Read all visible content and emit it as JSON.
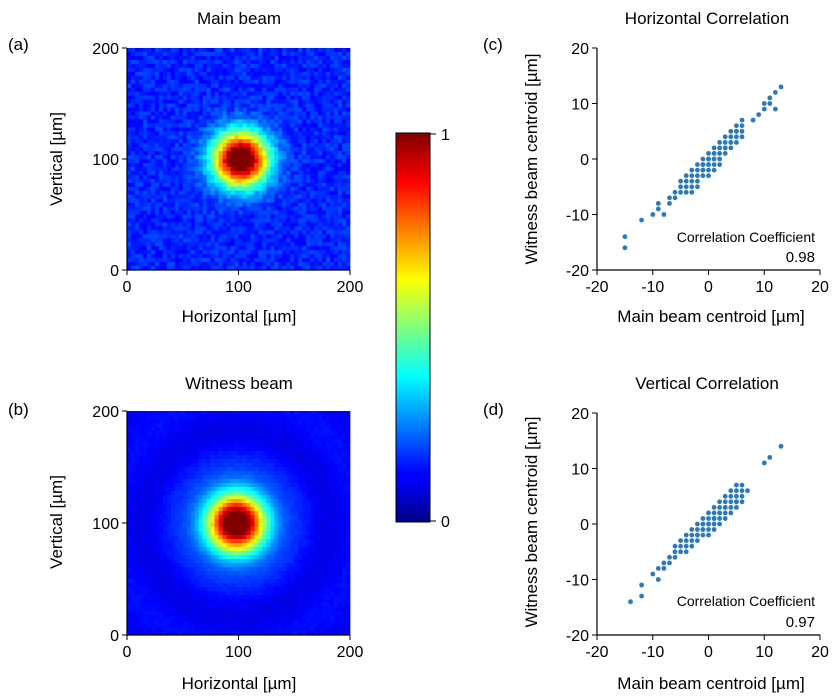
{
  "figure": {
    "colorbar": {
      "min_label": "0",
      "max_label": "1"
    }
  },
  "chart_data": [
    {
      "panel": "(a)",
      "type": "heatmap",
      "title": "Main beam",
      "xlabel": "Horizontal [µm]",
      "ylabel": "Vertical [µm]",
      "xlim": [
        0,
        200
      ],
      "ylim": [
        0,
        200
      ],
      "xticks": [
        "0",
        "100",
        "200"
      ],
      "yticks": [
        "0",
        "100",
        "200"
      ],
      "colormap": "jet",
      "value_range": [
        0,
        1
      ],
      "spot_center": [
        102,
        100
      ],
      "spot_sigma_um": 17,
      "background_level": 0.16
    },
    {
      "panel": "(b)",
      "type": "heatmap",
      "title": "Witness beam",
      "xlabel": "Horizontal [µm]",
      "ylabel": "Vertical [µm]",
      "xlim": [
        0,
        200
      ],
      "ylim": [
        0,
        200
      ],
      "xticks": [
        "0",
        "100",
        "200"
      ],
      "yticks": [
        "0",
        "100",
        "200"
      ],
      "colormap": "jet",
      "value_range": [
        0,
        1
      ],
      "spot_center": [
        98,
        100
      ],
      "spot_sigma_um": 20,
      "background_level": 0.12
    },
    {
      "panel": "(c)",
      "type": "scatter",
      "title": "Horizontal Correlation",
      "xlabel": "Main beam centroid [µm]",
      "ylabel": "Witness beam centroid [µm]",
      "xlim": [
        -20,
        20
      ],
      "ylim": [
        -20,
        20
      ],
      "xticks": [
        "-20",
        "-10",
        "0",
        "10",
        "20"
      ],
      "yticks": [
        "-20",
        "-10",
        "0",
        "10",
        "20"
      ],
      "annotation_label": "Correlation Coefficient",
      "annotation_value": "0.98",
      "point_color": "#2a7ab8",
      "x": [
        -15,
        -15,
        -12,
        -10,
        -9,
        -9,
        -8,
        -7,
        -7,
        -6,
        -6,
        -5,
        -5,
        -5,
        -4,
        -4,
        -4,
        -4,
        -3,
        -3,
        -3,
        -3,
        -3,
        -2,
        -2,
        -2,
        -2,
        -2,
        -1,
        -1,
        -1,
        -1,
        -1,
        -1,
        0,
        0,
        0,
        0,
        0,
        0,
        0,
        1,
        1,
        1,
        1,
        1,
        1,
        2,
        2,
        2,
        2,
        2,
        2,
        3,
        3,
        3,
        3,
        3,
        4,
        4,
        4,
        4,
        4,
        5,
        5,
        5,
        5,
        5,
        6,
        6,
        6,
        6,
        8,
        9,
        10,
        10,
        11,
        11,
        12,
        12,
        13
      ],
      "y": [
        -14,
        -16,
        -11,
        -10,
        -9,
        -8,
        -10,
        -7,
        -8,
        -6,
        -7,
        -4,
        -5,
        -6,
        -3,
        -4,
        -5,
        -6,
        -2,
        -3,
        -4,
        -5,
        -6,
        -1,
        -2,
        -3,
        -4,
        -5,
        0,
        -1,
        -2,
        -3,
        -1,
        -2,
        1,
        0,
        -1,
        -2,
        0,
        -1,
        -3,
        1,
        2,
        0,
        -1,
        1,
        -2,
        2,
        1,
        3,
        0,
        2,
        -1,
        3,
        2,
        4,
        1,
        2,
        4,
        3,
        5,
        2,
        3,
        4,
        5,
        6,
        3,
        5,
        5,
        6,
        4,
        7,
        7,
        8,
        9,
        10,
        11,
        10,
        12,
        9,
        13
      ]
    },
    {
      "panel": "(d)",
      "type": "scatter",
      "title": "Vertical Correlation",
      "xlabel": "Main beam centroid [µm]",
      "ylabel": "Witness beam centroid [µm]",
      "xlim": [
        -20,
        20
      ],
      "ylim": [
        -20,
        20
      ],
      "xticks": [
        "-20",
        "-10",
        "0",
        "10",
        "20"
      ],
      "yticks": [
        "-20",
        "-10",
        "0",
        "10",
        "20"
      ],
      "annotation_label": "Correlation Coefficient",
      "annotation_value": "0.97",
      "point_color": "#2a7ab8",
      "x": [
        -14,
        -12,
        -12,
        -10,
        -9,
        -9,
        -8,
        -8,
        -7,
        -7,
        -6,
        -6,
        -6,
        -5,
        -5,
        -5,
        -4,
        -4,
        -4,
        -4,
        -3,
        -3,
        -3,
        -3,
        -2,
        -2,
        -2,
        -2,
        -2,
        -1,
        -1,
        -1,
        -1,
        -1,
        0,
        0,
        0,
        0,
        0,
        0,
        1,
        1,
        1,
        1,
        1,
        1,
        2,
        2,
        2,
        2,
        2,
        2,
        3,
        3,
        3,
        3,
        3,
        3,
        4,
        4,
        4,
        4,
        4,
        5,
        5,
        5,
        5,
        5,
        5,
        6,
        6,
        6,
        6,
        7,
        10,
        11,
        13
      ],
      "y": [
        -14,
        -13,
        -11,
        -9,
        -8,
        -10,
        -7,
        -8,
        -6,
        -7,
        -5,
        -6,
        -4,
        -4,
        -5,
        -3,
        -3,
        -4,
        -2,
        -5,
        -2,
        -3,
        -1,
        -4,
        -1,
        -2,
        0,
        -3,
        -2,
        0,
        -1,
        1,
        -2,
        -1,
        0,
        1,
        -1,
        2,
        -2,
        0,
        1,
        2,
        0,
        3,
        -1,
        1,
        2,
        3,
        1,
        4,
        0,
        2,
        3,
        4,
        2,
        5,
        1,
        3,
        4,
        5,
        3,
        6,
        2,
        4,
        5,
        6,
        3,
        7,
        4,
        5,
        6,
        7,
        4,
        6,
        11,
        12,
        14
      ]
    }
  ]
}
